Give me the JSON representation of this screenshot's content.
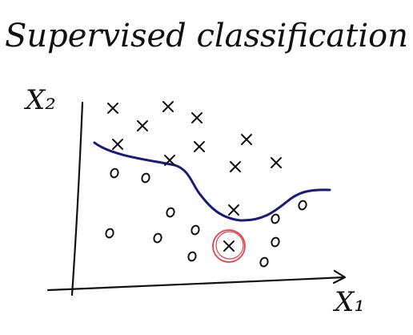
{
  "title": "Supervised classification",
  "axes": {
    "x_label": "X₁",
    "y_label": "X₂"
  },
  "colors": {
    "ink": "#111111",
    "boundary": "#1a1a7a",
    "highlight": "#e0404a"
  },
  "classes": [
    {
      "marker": "x"
    },
    {
      "marker": "o"
    }
  ],
  "annotations": {
    "misclassified_point": "x marker below the boundary circled in red"
  }
}
